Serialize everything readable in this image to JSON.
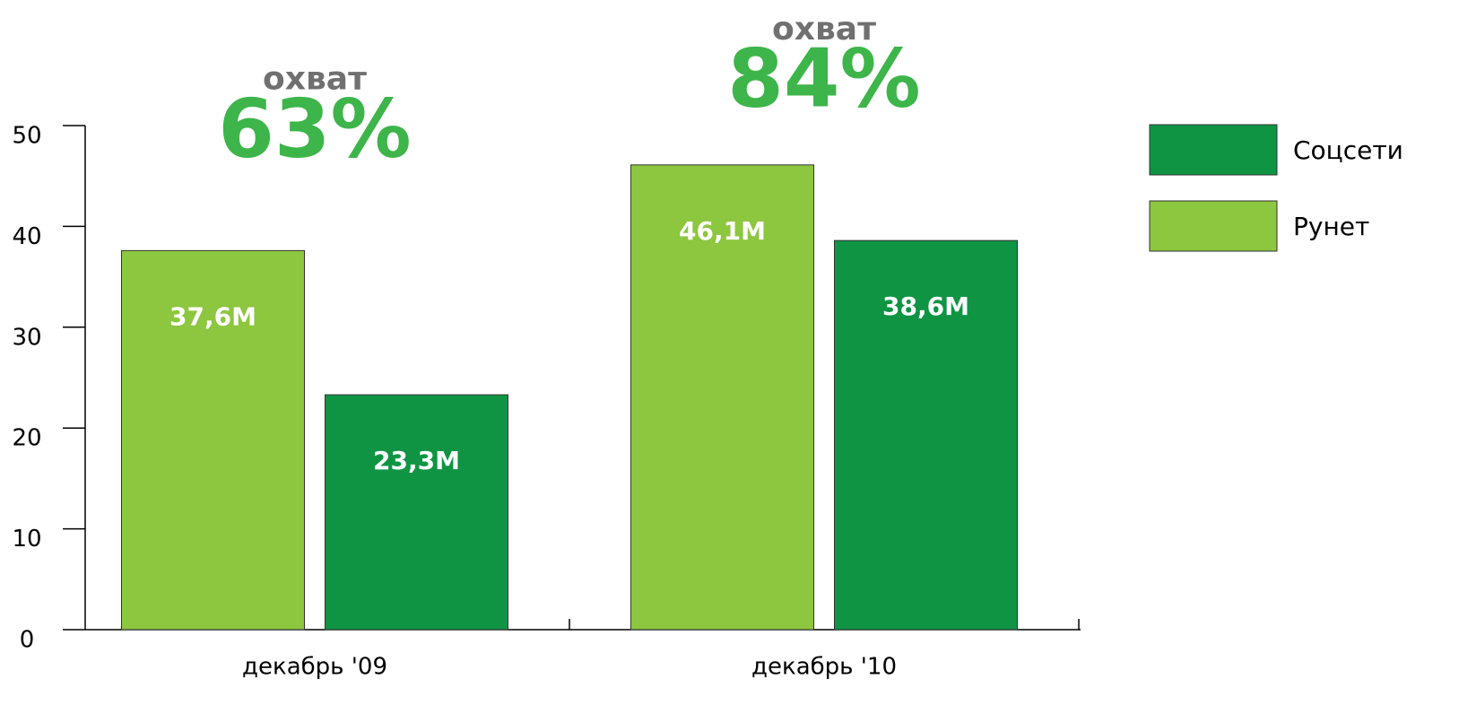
{
  "chart_data": {
    "type": "bar",
    "categories": [
      "декабрь '09",
      "декабрь '10"
    ],
    "series": [
      {
        "name": "Рунет",
        "color": "#8dc63f",
        "values": [
          37.6,
          46.1
        ],
        "value_labels": [
          "37,6M",
          "46,1M"
        ]
      },
      {
        "name": "Соцсети",
        "color": "#0f9444",
        "values": [
          23.3,
          38.6
        ],
        "value_labels": [
          "23,3M",
          "38,6M"
        ]
      }
    ],
    "annotations": [
      {
        "title": "охват",
        "text": "63%"
      },
      {
        "title": "охват",
        "text": "84%"
      }
    ],
    "ylim": [
      0,
      50
    ],
    "yticks": [
      0,
      10,
      20,
      30,
      40,
      50
    ],
    "grid": false
  }
}
